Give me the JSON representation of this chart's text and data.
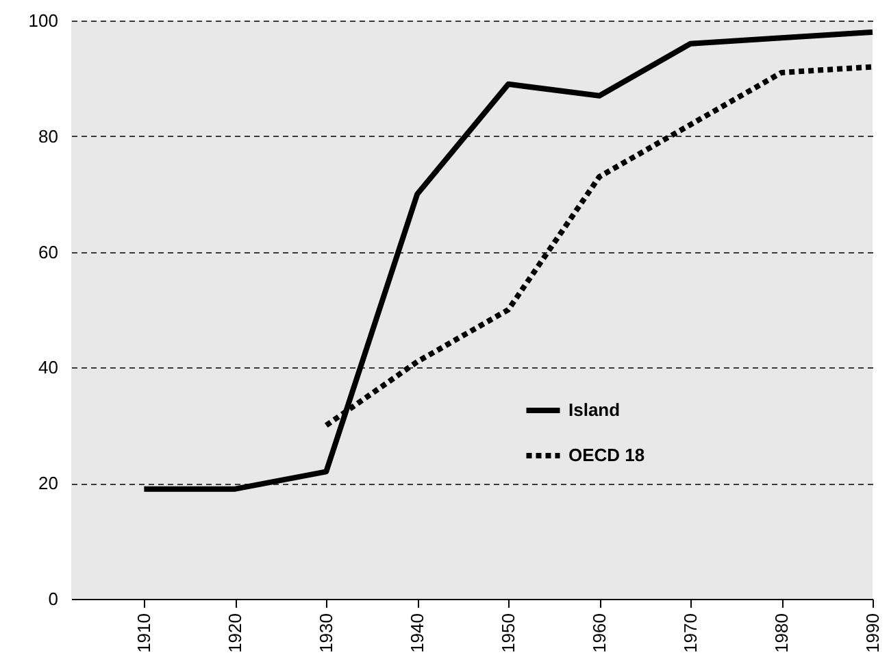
{
  "chart_data": {
    "type": "line",
    "x": [
      1910,
      1920,
      1930,
      1940,
      1950,
      1960,
      1970,
      1980,
      1990
    ],
    "xlim": [
      1902,
      1990
    ],
    "xticks": [
      1910,
      1920,
      1930,
      1940,
      1950,
      1960,
      1970,
      1980,
      1990
    ],
    "ylim": [
      0,
      100
    ],
    "yticks": [
      0,
      20,
      40,
      60,
      80,
      100
    ],
    "grid": "y",
    "legend": "right",
    "series": [
      {
        "name": "Island",
        "color": "#000000",
        "line_style": "solid",
        "values": [
          19,
          19,
          22,
          70,
          89,
          87,
          96,
          97,
          98
        ]
      },
      {
        "name": "OECD 18",
        "color": "#000000",
        "line_style": "dotted",
        "values": [
          null,
          null,
          30,
          41,
          50,
          73,
          82,
          91,
          92
        ]
      }
    ]
  }
}
